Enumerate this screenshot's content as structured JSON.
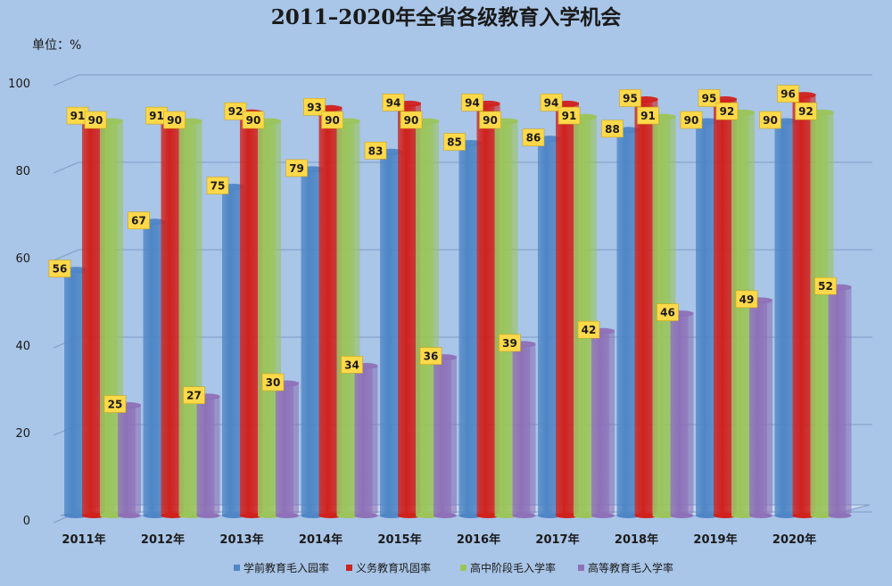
{
  "chart_data": {
    "type": "bar",
    "title": "2011–2020年全省各级教育入学机会",
    "unit_label": "单位：%",
    "ylim": [
      0,
      100
    ],
    "yticks": [
      0,
      20,
      40,
      60,
      80,
      100
    ],
    "grid": true,
    "legend_position": "bottom",
    "categories": [
      "2011年",
      "2012年",
      "2013年",
      "2014年",
      "2015年",
      "2016年",
      "2017年",
      "2018年",
      "2019年",
      "2020年"
    ],
    "series": [
      {
        "name": "学前教育毛入园率",
        "color": "#4f86c6",
        "values": [
          56,
          67,
          75,
          79,
          83,
          85,
          86,
          88,
          90,
          90
        ]
      },
      {
        "name": "义务教育巩固率",
        "color": "#d0211d",
        "values": [
          91,
          91,
          92,
          93,
          94,
          94,
          94,
          95,
          95,
          96
        ]
      },
      {
        "name": "高中阶段毛入学率",
        "color": "#9bc55a",
        "values": [
          90,
          90,
          90,
          90,
          90,
          90,
          91,
          91,
          92,
          92
        ]
      },
      {
        "name": "高等教育毛入学率",
        "color": "#8e71b8",
        "values": [
          25,
          27,
          30,
          34,
          36,
          39,
          42,
          46,
          49,
          52
        ]
      }
    ],
    "label_bg_color": "#ffd94a"
  }
}
